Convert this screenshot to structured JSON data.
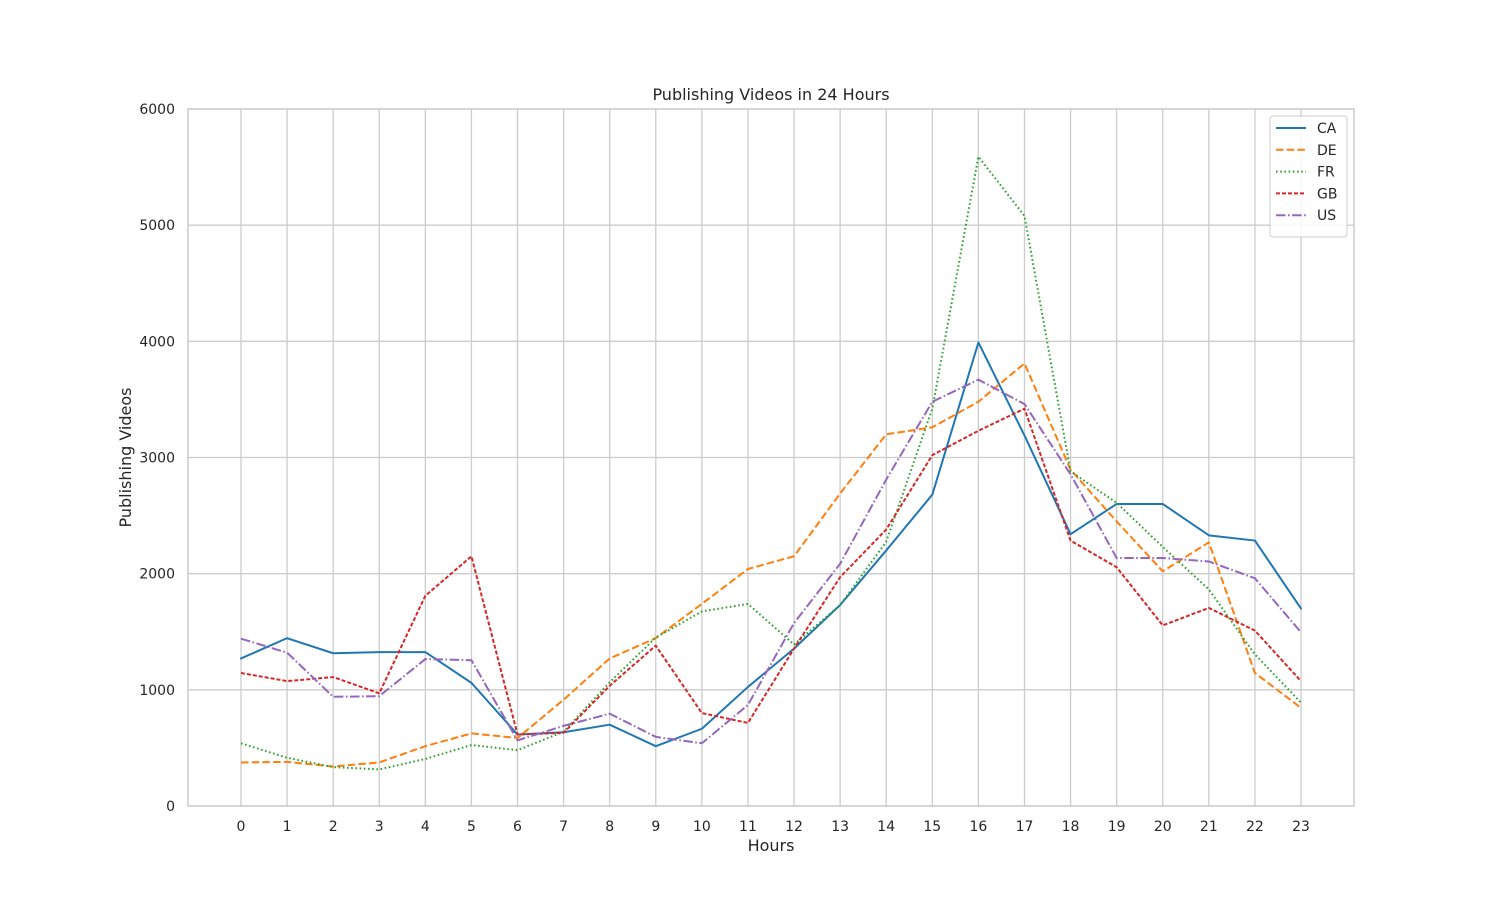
{
  "chart_data": {
    "type": "line",
    "title": "Publishing Videos in 24 Hours",
    "xlabel": "Hours",
    "ylabel": "Publishing Videos",
    "x": [
      0,
      1,
      2,
      3,
      4,
      5,
      6,
      7,
      8,
      9,
      10,
      11,
      12,
      13,
      14,
      15,
      16,
      17,
      18,
      19,
      20,
      21,
      22,
      23
    ],
    "xticks": [
      "0",
      "1",
      "2",
      "3",
      "4",
      "5",
      "6",
      "7",
      "8",
      "9",
      "10",
      "11",
      "12",
      "13",
      "14",
      "15",
      "16",
      "17",
      "18",
      "19",
      "20",
      "21",
      "22",
      "23"
    ],
    "xlim": [
      -1.15,
      24.15
    ],
    "ylim": [
      0,
      6000
    ],
    "yticks": [
      0,
      1000,
      2000,
      3000,
      4000,
      5000,
      6000
    ],
    "ytick_labels": [
      "0",
      "1000",
      "2000",
      "3000",
      "4000",
      "5000",
      "6000"
    ],
    "grid": true,
    "legend_position": "top-right",
    "series": [
      {
        "name": "CA",
        "color": "#1f77b4",
        "dash": "solid",
        "values": [
          1270,
          1445,
          1315,
          1325,
          1325,
          1060,
          615,
          635,
          700,
          515,
          665,
          1025,
          1355,
          1730,
          2200,
          2680,
          3990,
          3190,
          2340,
          2600,
          2600,
          2330,
          2285,
          1700
        ]
      },
      {
        "name": "DE",
        "color": "#ff7f0e",
        "dash": "dashed",
        "values": [
          375,
          380,
          340,
          375,
          515,
          625,
          585,
          915,
          1270,
          1445,
          1740,
          2040,
          2150,
          2690,
          3200,
          3260,
          3480,
          3810,
          2895,
          2450,
          2020,
          2270,
          1145,
          845
        ]
      },
      {
        "name": "FR",
        "color": "#2ca02c",
        "dash": "dotted",
        "values": [
          540,
          415,
          335,
          315,
          405,
          525,
          480,
          640,
          1065,
          1450,
          1675,
          1740,
          1390,
          1730,
          2275,
          3420,
          5590,
          5080,
          2880,
          2610,
          2230,
          1865,
          1305,
          890
        ]
      },
      {
        "name": "GB",
        "color": "#d62728",
        "dash": "densedash",
        "values": [
          1145,
          1075,
          1110,
          970,
          1810,
          2150,
          615,
          630,
          1035,
          1380,
          800,
          715,
          1355,
          1970,
          2380,
          3020,
          3230,
          3420,
          2285,
          2055,
          1555,
          1705,
          1510,
          1075
        ]
      },
      {
        "name": "US",
        "color": "#9467bd",
        "dash": "dashdot",
        "values": [
          1440,
          1320,
          940,
          945,
          1265,
          1255,
          565,
          690,
          795,
          595,
          540,
          870,
          1575,
          2085,
          2810,
          3480,
          3670,
          3460,
          2855,
          2135,
          2135,
          2105,
          1960,
          1495
        ]
      }
    ]
  }
}
